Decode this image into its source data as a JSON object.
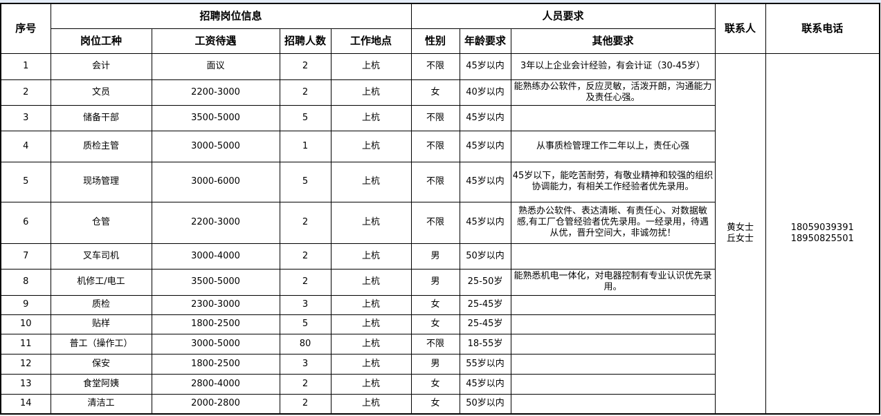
{
  "headers": {
    "seq": "序号",
    "job_info": "招聘岗位信息",
    "requirements": "人员要求",
    "contact": "联系人",
    "phone": "联系电话",
    "position": "岗位工种",
    "salary": "工资待遇",
    "count": "招聘人数",
    "location": "工作地点",
    "gender": "性别",
    "age": "年龄要求",
    "other": "其他要求"
  },
  "contact": {
    "names": "黄女士\n丘女士",
    "phones": "18059039391\n18950825501"
  },
  "rows": [
    {
      "seq": "1",
      "position": "会计",
      "salary": "面议",
      "count": "2",
      "location": "上杭",
      "gender": "不限",
      "age": "45岁以内",
      "other": "3年以上企业会计经验，有会计证（30-45岁）"
    },
    {
      "seq": "2",
      "position": "文员",
      "salary": "2200-3000",
      "count": "2",
      "location": "上杭",
      "gender": "女",
      "age": "40岁以内",
      "other": "能熟练办公软件，反应灵敏，活泼开朗，沟通能力及责任心强。"
    },
    {
      "seq": "3",
      "position": "储备干部",
      "salary": "3500-5000",
      "count": "5",
      "location": "上杭",
      "gender": "不限",
      "age": "45岁以内",
      "other": ""
    },
    {
      "seq": "4",
      "position": "质检主管",
      "salary": "3000-5000",
      "count": "1",
      "location": "上杭",
      "gender": "不限",
      "age": "45岁以内",
      "other": "从事质检管理工作二年以上，责任心强"
    },
    {
      "seq": "5",
      "position": "现场管理",
      "salary": "3000-6000",
      "count": "5",
      "location": "上杭",
      "gender": "不限",
      "age": "45岁以内",
      "other": "45岁以下，能吃苦耐劳，有敬业精神和较强的组织协调能力，有相关工作经验者优先录用。"
    },
    {
      "seq": "6",
      "position": "仓管",
      "salary": "2200-3000",
      "count": "2",
      "location": "上杭",
      "gender": "不限",
      "age": "45岁以内",
      "other": "熟悉办公软件、表达清晰、有责任心、对数据敏感,有工厂仓管经验者优先录用。一经录用，待遇从优，晋升空间大，非诚勿扰！"
    },
    {
      "seq": "7",
      "position": "叉车司机",
      "salary": "3000-4000",
      "count": "2",
      "location": "上杭",
      "gender": "男",
      "age": "50岁以内",
      "other": ""
    },
    {
      "seq": "8",
      "position": "机修工/电工",
      "salary": "3500-5000",
      "count": "2",
      "location": "上杭",
      "gender": "男",
      "age": "25-50岁",
      "other": "能熟悉机电一体化，对电器控制有专业认识优先录用。"
    },
    {
      "seq": "9",
      "position": "质检",
      "salary": "2300-3000",
      "count": "3",
      "location": "上杭",
      "gender": "女",
      "age": "25-45岁",
      "other": ""
    },
    {
      "seq": "10",
      "position": "贴样",
      "salary": "1800-2500",
      "count": "5",
      "location": "上杭",
      "gender": "女",
      "age": "25-45岁",
      "other": ""
    },
    {
      "seq": "11",
      "position": "普工（操作工）",
      "salary": "3000-5000",
      "count": "80",
      "location": "上杭",
      "gender": "不限",
      "age": "18-55岁",
      "other": ""
    },
    {
      "seq": "12",
      "position": "保安",
      "salary": "1800-2500",
      "count": "3",
      "location": "上杭",
      "gender": "男",
      "age": "55岁以内",
      "other": ""
    },
    {
      "seq": "13",
      "position": "食堂阿姨",
      "salary": "2800-4000",
      "count": "2",
      "location": "上杭",
      "gender": "女",
      "age": "45岁以内",
      "other": ""
    },
    {
      "seq": "14",
      "position": "清洁工",
      "salary": "2000-2800",
      "count": "2",
      "location": "上杭",
      "gender": "女",
      "age": "50岁以内",
      "other": ""
    }
  ]
}
